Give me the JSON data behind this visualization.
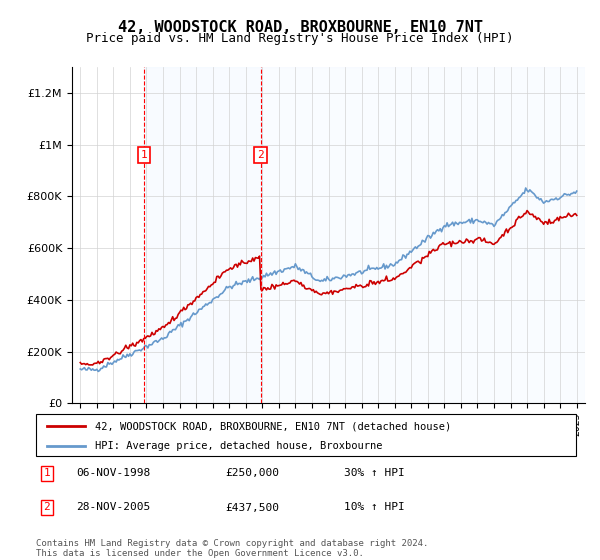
{
  "title": "42, WOODSTOCK ROAD, BROXBOURNE, EN10 7NT",
  "subtitle": "Price paid vs. HM Land Registry's House Price Index (HPI)",
  "legend_line1": "42, WOODSTOCK ROAD, BROXBOURNE, EN10 7NT (detached house)",
  "legend_line2": "HPI: Average price, detached house, Broxbourne",
  "table_row1": [
    "1",
    "06-NOV-1998",
    "£250,000",
    "30% ↑ HPI"
  ],
  "table_row2": [
    "2",
    "28-NOV-2005",
    "£437,500",
    "10% ↑ HPI"
  ],
  "footnote": "Contains HM Land Registry data © Crown copyright and database right 2024.\nThis data is licensed under the Open Government Licence v3.0.",
  "purchase1_year": 1998.85,
  "purchase1_price": 250000,
  "purchase2_year": 2005.9,
  "purchase2_price": 437500,
  "red_color": "#cc0000",
  "blue_color": "#6699cc",
  "shade_color": "#ddeeff",
  "ylim": [
    0,
    1300000
  ],
  "xlim": [
    1994.5,
    2025.5
  ]
}
